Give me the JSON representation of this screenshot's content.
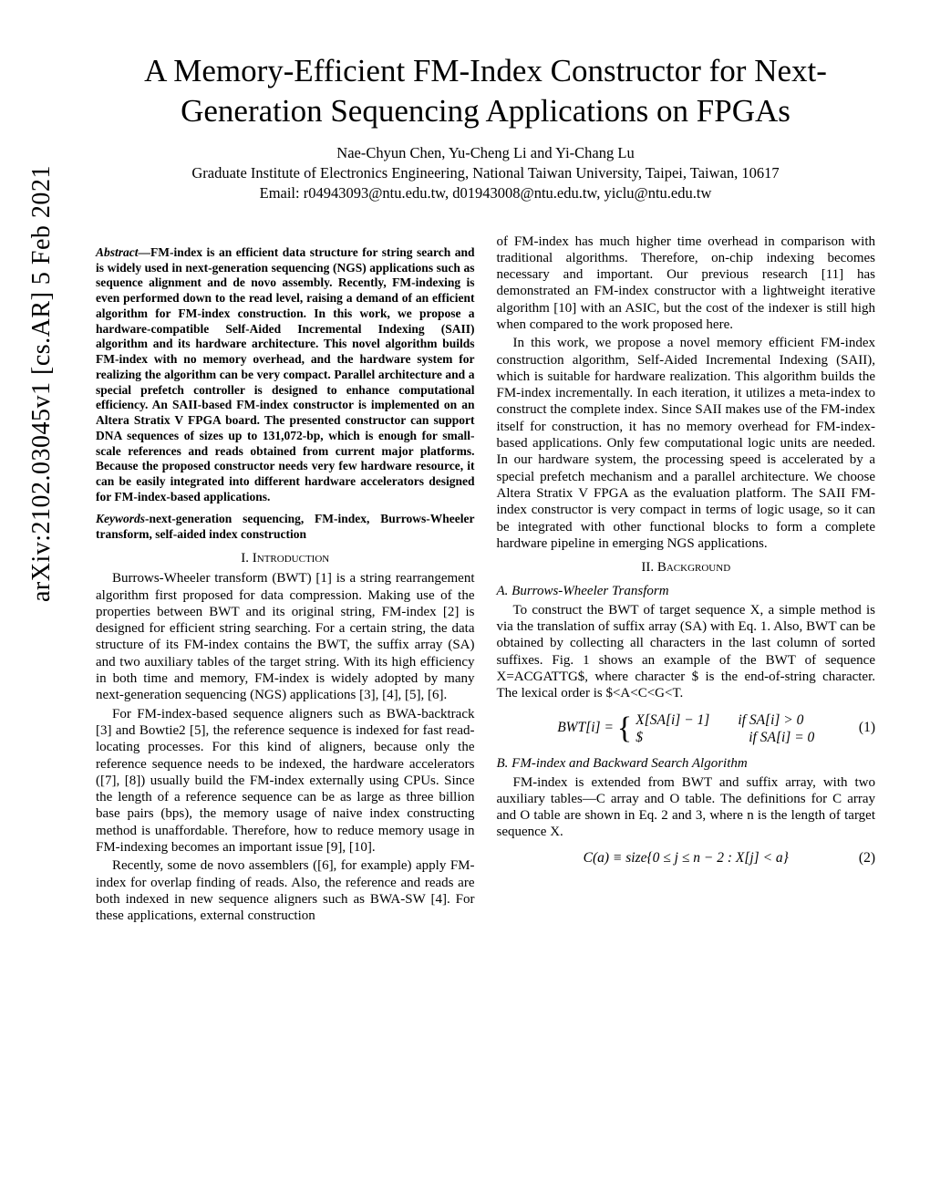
{
  "arxiv": "arXiv:2102.03045v1  [cs.AR]  5 Feb 2021",
  "title": "A Memory-Efficient FM-Index Constructor for Next-Generation Sequencing Applications on FPGAs",
  "authors": "Nae-Chyun Chen, Yu-Cheng Li and Yi-Chang Lu",
  "affiliation": "Graduate Institute of Electronics Engineering, National Taiwan University, Taipei, Taiwan, 10617",
  "email": "Email: r04943093@ntu.edu.tw, d01943008@ntu.edu.tw, yiclu@ntu.edu.tw",
  "abstract_label": "Abstract",
  "abstract": "—FM-index is an efficient data structure for string search and is widely used in next-generation sequencing (NGS) applications such as sequence alignment and de novo assembly. Recently, FM-indexing is even performed down to the read level, raising a demand of an efficient algorithm for FM-index construction. In this work, we propose a hardware-compatible Self-Aided Incremental Indexing (SAII) algorithm and its hardware architecture. This novel algorithm builds FM-index with no memory overhead, and the hardware system for realizing the algorithm can be very compact. Parallel architecture and a special prefetch controller is designed to enhance computational efficiency. An SAII-based FM-index constructor is implemented on an Altera Stratix V FPGA board. The presented constructor can support DNA sequences of sizes up to 131,072-bp, which is enough for small-scale references and reads obtained from current major platforms. Because the proposed constructor needs very few hardware resource, it can be easily integrated into different hardware accelerators designed for FM-index-based applications.",
  "keywords_label": "Keywords",
  "keywords": "-next-generation sequencing, FM-index, Burrows-Wheeler transform, self-aided index construction",
  "sec1": "I.  Introduction",
  "p1": "Burrows-Wheeler transform (BWT) [1] is a string rearrangement algorithm first proposed for data compression. Making use of the properties between BWT and its original string, FM-index [2] is designed for efficient string searching. For a certain string, the data structure of its FM-index contains the BWT, the suffix array (SA) and two auxiliary tables of the target string. With its high efficiency in both time and memory, FM-index is widely adopted by many next-generation sequencing (NGS) applications [3], [4], [5], [6].",
  "p2": "For FM-index-based sequence aligners such as BWA-backtrack [3] and Bowtie2 [5], the reference sequence is indexed for fast read-locating processes. For this kind of aligners, because only the reference sequence needs to be indexed, the hardware accelerators ([7], [8]) usually build the FM-index externally using CPUs. Since the length of a reference sequence can be as large as three billion base pairs (bps), the memory usage of naive index constructing method is unaffordable. Therefore, how to reduce memory usage in FM-indexing becomes an important issue [9], [10].",
  "p3": "Recently, some de novo assemblers ([6], for example) apply FM-index for overlap finding of reads. Also, the reference and reads are both indexed in new sequence aligners such as BWA-SW [4]. For these applications, external construction",
  "p4": "of FM-index has much higher time overhead in comparison with traditional algorithms. Therefore, on-chip indexing becomes necessary and important. Our previous research [11] has demonstrated an FM-index constructor with a lightweight iterative algorithm [10] with an ASIC, but the cost of the indexer is still high when compared to the work proposed here.",
  "p5": "In this work, we propose a novel memory efficient FM-index construction algorithm, Self-Aided Incremental Indexing (SAII), which is suitable for hardware realization. This algorithm builds the FM-index incrementally. In each iteration, it utilizes a meta-index to construct the complete index. Since SAII makes use of the FM-index itself for construction, it has no memory overhead for FM-index-based applications. Only few computational logic units are needed. In our hardware system, the processing speed is accelerated by a special prefetch mechanism and a parallel architecture. We choose Altera Stratix V FPGA as the evaluation platform. The SAII FM-index constructor is very compact in terms of logic usage, so it can be integrated with other functional blocks to form a complete hardware pipeline in emerging NGS applications.",
  "sec2": "II.  Background",
  "sub2a": "A. Burrows-Wheeler Transform",
  "p6": "To construct the BWT of target sequence X, a simple method is via the translation of suffix array (SA) with Eq. 1. Also, BWT can be obtained by collecting all characters in the last column of sorted suffixes. Fig. 1 shows an example of the BWT of sequence X=ACGATTG$, where character $ is the end-of-string character. The lexical order is $<A<C<G<T.",
  "eq1_lhs": "BWT[i] = ",
  "eq1_r1": "X[SA[i] − 1]  if  SA[i] > 0",
  "eq1_r2": "$        if  SA[i] = 0",
  "eq1_num": "(1)",
  "sub2b": "B. FM-index and Backward Search Algorithm",
  "p7": "FM-index is extended from BWT and suffix array, with two auxiliary tables—C array and O table. The definitions for C array and O table are shown in Eq. 2 and 3, where n is the length of target sequence X.",
  "eq2": "C(a) ≡ size{0 ≤ j ≤ n − 2 : X[j] < a}",
  "eq2_num": "(2)"
}
